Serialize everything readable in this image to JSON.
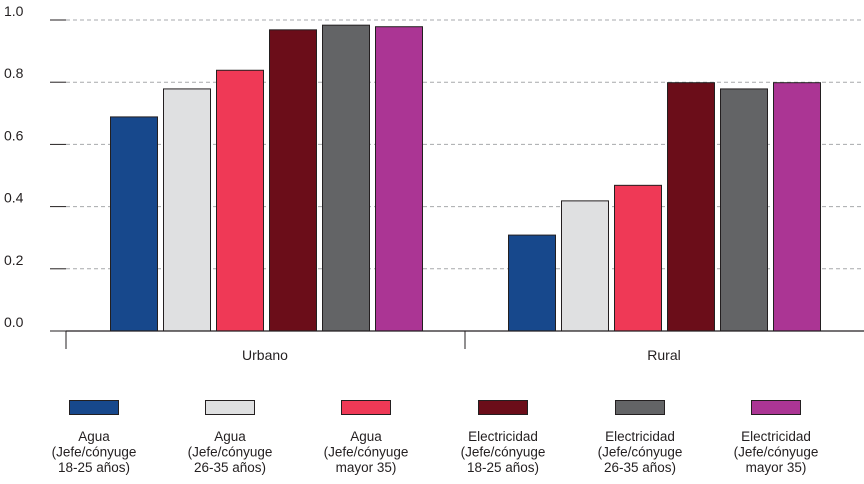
{
  "chart_data": {
    "type": "bar",
    "categories": [
      "Urbano",
      "Rural"
    ],
    "series": [
      {
        "name": "Agua (Jefe/cónyuge 18-25 años)",
        "label_lines": [
          "Agua",
          "(Jefe/cónyuge",
          "18-25 años)"
        ],
        "color": "#17488c",
        "values": [
          0.69,
          0.31
        ]
      },
      {
        "name": "Agua (Jefe/cónyuge 26-35 años)",
        "label_lines": [
          "Agua",
          "(Jefe/cónyuge",
          "26-35 años)"
        ],
        "color": "#dfe0e1",
        "values": [
          0.78,
          0.42
        ]
      },
      {
        "name": "Agua (Jefe/cónyuge mayor 35)",
        "label_lines": [
          "Agua",
          "(Jefe/cónyuge",
          "mayor 35)"
        ],
        "color": "#ef3956",
        "values": [
          0.84,
          0.47
        ]
      },
      {
        "name": "Electricidad (Jefe/cónyuge 18-25 años)",
        "label_lines": [
          "Electricidad",
          "(Jefe/cónyuge",
          "18-25 años)"
        ],
        "color": "#6b0d19",
        "values": [
          0.97,
          0.8
        ]
      },
      {
        "name": "Electricidad (Jefe/cónyuge 26-35 años)",
        "label_lines": [
          "Electricidad",
          "(Jefe/cónyuge",
          "26-35 años)"
        ],
        "color": "#636466",
        "values": [
          0.985,
          0.78
        ]
      },
      {
        "name": "Electricidad (Jefe/cónyuge mayor 35)",
        "label_lines": [
          "Electricidad",
          "(Jefe/cónyuge",
          "mayor 35)"
        ],
        "color": "#ab3594",
        "values": [
          0.98,
          0.8
        ]
      }
    ],
    "yticks": [
      "0.0",
      "0.2",
      "0.4",
      "0.6",
      "0.8",
      "1.0"
    ],
    "ylim": [
      0,
      1.0
    ],
    "grid": true,
    "legend_position": "bottom",
    "title": "",
    "xlabel": "",
    "ylabel": ""
  }
}
